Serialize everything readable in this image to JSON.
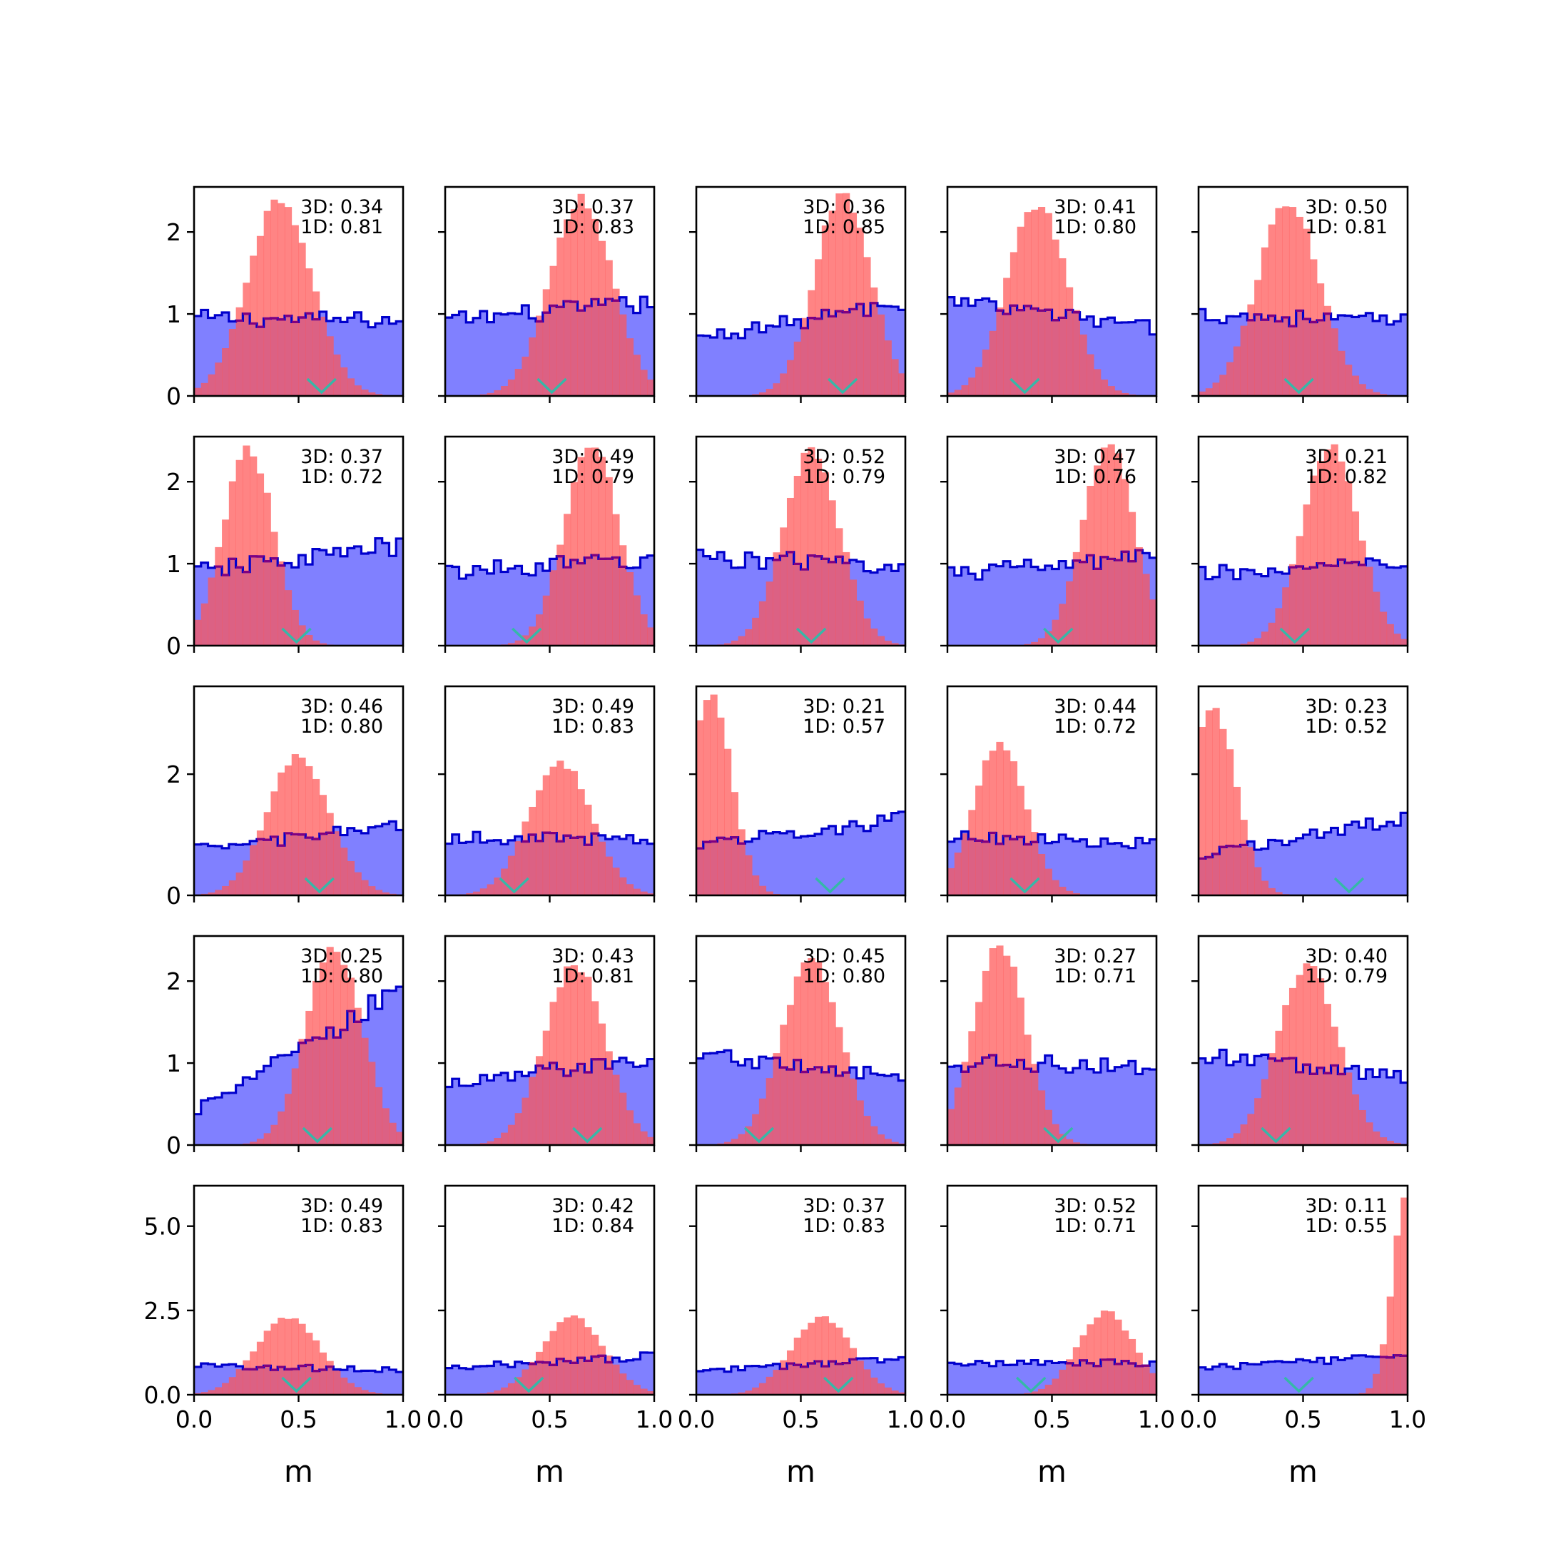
{
  "colors": {
    "uniform_fill": "#8080ff",
    "uniform_edge": "#0000cc",
    "posterior_fill": "#ff5555",
    "overlap_edge": "#800080",
    "marker": "#35b8a8"
  },
  "chart_data": {
    "type": "histogram-grid",
    "rows": 5,
    "cols": 5,
    "xlabel": "m",
    "xlim": [
      0,
      1
    ],
    "xticks": [
      "0.0",
      "0.5",
      "1.0"
    ],
    "row_ylims": [
      [
        0,
        2.55
      ],
      [
        0,
        2.55
      ],
      [
        0,
        3.45
      ],
      [
        0,
        2.55
      ],
      [
        0,
        6.2
      ]
    ],
    "row_yticks": [
      [
        "0",
        "1",
        "2"
      ],
      [
        "0",
        "1",
        "2"
      ],
      [
        "0",
        "2"
      ],
      [
        "0",
        "1",
        "2"
      ],
      [
        "0.0",
        "2.5",
        "5.0"
      ]
    ],
    "panels": [
      {
        "ann_3d": "3D: 0.34",
        "ann_1d": "1D: 0.81",
        "peak": 0.41,
        "width": 0.155,
        "height": 2.4,
        "uniform_start": 0.95,
        "uniform_end": 0.92,
        "marker": 0.61
      },
      {
        "ann_3d": "3D: 0.37",
        "ann_1d": "1D: 0.83",
        "peak": 0.65,
        "width": 0.15,
        "height": 2.4,
        "uniform_start": 0.92,
        "uniform_end": 1.13,
        "marker": 0.51
      },
      {
        "ann_3d": "3D: 0.36",
        "ann_1d": "1D: 0.85",
        "peak": 0.7,
        "width": 0.135,
        "height": 2.45,
        "uniform_start": 0.7,
        "uniform_end": 1.13,
        "marker": 0.7
      },
      {
        "ann_3d": "3D: 0.41",
        "ann_1d": "1D: 0.80",
        "peak": 0.43,
        "width": 0.145,
        "height": 2.35,
        "uniform_start": 1.15,
        "uniform_end": 0.82,
        "marker": 0.37
      },
      {
        "ann_3d": "3D: 0.50",
        "ann_1d": "1D: 0.81",
        "peak": 0.43,
        "width": 0.15,
        "height": 2.35,
        "uniform_start": 1.0,
        "uniform_end": 0.9,
        "marker": 0.48
      },
      {
        "ann_3d": "3D: 0.37",
        "ann_1d": "1D: 0.72",
        "peak": 0.26,
        "width": 0.12,
        "height": 2.4,
        "uniform_start": 0.9,
        "uniform_end": 1.22,
        "marker": 0.49
      },
      {
        "ann_3d": "3D: 0.49",
        "ann_1d": "1D: 0.79",
        "peak": 0.7,
        "width": 0.13,
        "height": 2.45,
        "uniform_start": 0.9,
        "uniform_end": 1.05,
        "marker": 0.39
      },
      {
        "ann_3d": "3D: 0.52",
        "ann_1d": "1D: 0.79",
        "peak": 0.55,
        "width": 0.135,
        "height": 2.4,
        "uniform_start": 1.08,
        "uniform_end": 0.97,
        "marker": 0.55
      },
      {
        "ann_3d": "3D: 0.47",
        "ann_1d": "1D: 0.76",
        "peak": 0.77,
        "width": 0.125,
        "height": 2.45,
        "uniform_start": 0.87,
        "uniform_end": 1.08,
        "marker": 0.53
      },
      {
        "ann_3d": "3D: 0.21",
        "ann_1d": "1D: 0.82",
        "peak": 0.63,
        "width": 0.135,
        "height": 2.45,
        "uniform_start": 0.87,
        "uniform_end": 1.0,
        "marker": 0.46
      },
      {
        "ann_3d": "3D: 0.46",
        "ann_1d": "1D: 0.80",
        "peak": 0.5,
        "width": 0.15,
        "height": 2.3,
        "uniform_start": 0.75,
        "uniform_end": 1.15,
        "marker": 0.6
      },
      {
        "ann_3d": "3D: 0.49",
        "ann_1d": "1D: 0.83",
        "peak": 0.55,
        "width": 0.15,
        "height": 2.2,
        "uniform_start": 0.95,
        "uniform_end": 0.93,
        "marker": 0.33
      },
      {
        "ann_3d": "3D: 0.21",
        "ann_1d": "1D: 0.57",
        "peak": 0.07,
        "width": 0.1,
        "height": 3.25,
        "uniform_start": 0.85,
        "uniform_end": 1.25,
        "marker": 0.64
      },
      {
        "ann_3d": "3D: 0.44",
        "ann_1d": "1D: 0.72",
        "peak": 0.25,
        "width": 0.125,
        "height": 2.5,
        "uniform_start": 0.97,
        "uniform_end": 0.85,
        "marker": 0.37
      },
      {
        "ann_3d": "3D: 0.23",
        "ann_1d": "1D: 0.52",
        "peak": 0.07,
        "width": 0.11,
        "height": 3.05,
        "uniform_start": 0.65,
        "uniform_end": 1.3,
        "marker": 0.72
      },
      {
        "ann_3d": "3D: 0.25",
        "ann_1d": "1D: 0.80",
        "peak": 0.67,
        "width": 0.135,
        "height": 2.4,
        "uniform_start": 0.4,
        "uniform_end": 1.9,
        "marker": 0.59
      },
      {
        "ann_3d": "3D: 0.43",
        "ann_1d": "1D: 0.81",
        "peak": 0.62,
        "width": 0.145,
        "height": 2.2,
        "uniform_start": 0.75,
        "uniform_end": 1.05,
        "marker": 0.68
      },
      {
        "ann_3d": "3D: 0.45",
        "ann_1d": "1D: 0.80",
        "peak": 0.55,
        "width": 0.14,
        "height": 2.25,
        "uniform_start": 1.12,
        "uniform_end": 0.8,
        "marker": 0.3
      },
      {
        "ann_3d": "3D: 0.27",
        "ann_1d": "1D: 0.71",
        "peak": 0.25,
        "width": 0.125,
        "height": 2.45,
        "uniform_start": 1.0,
        "uniform_end": 0.97,
        "marker": 0.53
      },
      {
        "ann_3d": "3D: 0.40",
        "ann_1d": "1D: 0.79",
        "peak": 0.52,
        "width": 0.145,
        "height": 2.2,
        "uniform_start": 1.1,
        "uniform_end": 0.82,
        "marker": 0.37
      },
      {
        "ann_3d": "3D: 0.49",
        "ann_1d": "1D: 0.83",
        "peak": 0.45,
        "width": 0.155,
        "height": 2.3,
        "uniform_start": 0.85,
        "uniform_end": 0.75,
        "marker": 0.49
      },
      {
        "ann_3d": "3D: 0.42",
        "ann_1d": "1D: 0.84",
        "peak": 0.61,
        "width": 0.15,
        "height": 2.3,
        "uniform_start": 0.8,
        "uniform_end": 1.15,
        "marker": 0.4
      },
      {
        "ann_3d": "3D: 0.37",
        "ann_1d": "1D: 0.83",
        "peak": 0.6,
        "width": 0.145,
        "height": 2.3,
        "uniform_start": 0.7,
        "uniform_end": 1.05,
        "marker": 0.68
      },
      {
        "ann_3d": "3D: 0.52",
        "ann_1d": "1D: 0.71",
        "peak": 0.76,
        "width": 0.135,
        "height": 2.45,
        "uniform_start": 0.95,
        "uniform_end": 0.95,
        "marker": 0.4
      },
      {
        "ann_3d": "3D: 0.11",
        "ann_1d": "1D: 0.55",
        "peak": 1.0,
        "width": 0.07,
        "height": 6.0,
        "uniform_start": 0.8,
        "uniform_end": 1.15,
        "marker": 0.48
      }
    ]
  }
}
